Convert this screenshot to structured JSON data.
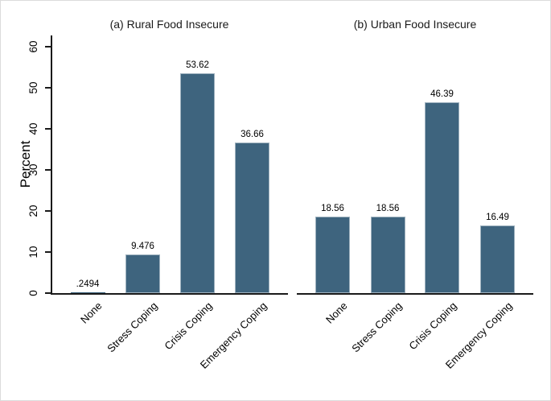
{
  "figure": {
    "background": "#ffffff",
    "border_color": "#dcdcdc"
  },
  "chart_data": [
    {
      "type": "bar",
      "panel": "a",
      "title": "(a) Rural Food Insecure",
      "ylabel": "Percent",
      "ylim": [
        0,
        60
      ],
      "yticks": [
        0,
        10,
        20,
        30,
        40,
        50,
        60
      ],
      "grid": false,
      "legend": "none",
      "categories": [
        "None",
        "Stress Coping",
        "Crisis Coping",
        "Emergency Coping"
      ],
      "values": [
        0.2494,
        9.476,
        53.62,
        36.66
      ],
      "bar_labels": [
        ".2494",
        "9.476",
        "53.62",
        "36.66"
      ],
      "bar_color": "#3e647e",
      "bar_outline_color": "#9fb2bf",
      "axis_color": "#1a1a1a",
      "xlabel_angle_deg": 45,
      "ytick_angle_deg": 90
    },
    {
      "type": "bar",
      "panel": "b",
      "title": "(b) Urban Food Insecure",
      "ylabel": "Percent",
      "ylim": [
        0,
        60
      ],
      "yticks": [
        0,
        10,
        20,
        30,
        40,
        50,
        60
      ],
      "grid": false,
      "legend": "none",
      "categories": [
        "None",
        "Stress Coping",
        "Crisis Coping",
        "Emergency Coping"
      ],
      "values": [
        18.56,
        18.56,
        46.39,
        16.49
      ],
      "bar_labels": [
        "18.56",
        "18.56",
        "46.39",
        "16.49"
      ],
      "bar_color": "#3e647e",
      "bar_outline_color": "#9fb2bf",
      "axis_color": "#1a1a1a",
      "xlabel_angle_deg": 45,
      "ytick_angle_deg": 90
    }
  ]
}
